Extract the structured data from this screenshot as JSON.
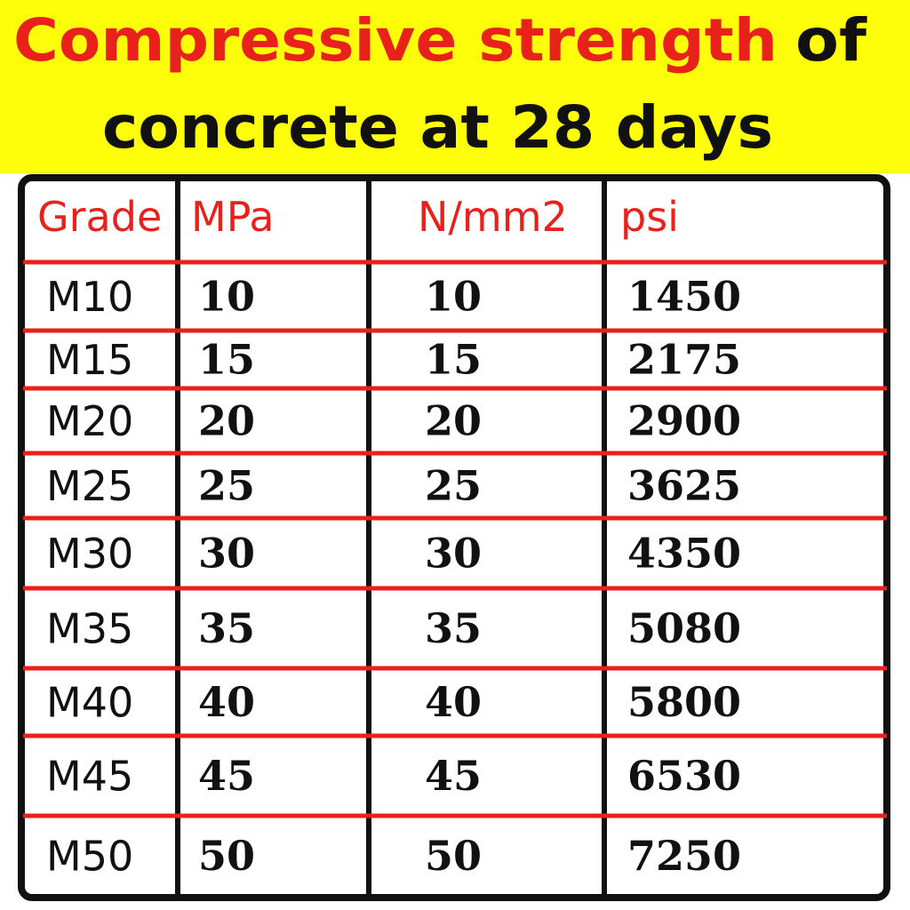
{
  "header": {
    "title_red": "Compressive strength",
    "title_black": "of",
    "title_line2": "concrete at 28 days"
  },
  "table": {
    "columns": [
      "Grade",
      "MPa",
      "N/mm2",
      "psi"
    ],
    "rows": [
      [
        "M10",
        10,
        10,
        1450
      ],
      [
        "M15",
        15,
        15,
        2175
      ],
      [
        "M20",
        20,
        20,
        2900
      ],
      [
        "M25",
        25,
        25,
        3625
      ],
      [
        "M30",
        30,
        30,
        4350
      ],
      [
        "M35",
        35,
        35,
        5080
      ],
      [
        "M40",
        40,
        40,
        5800
      ],
      [
        "M45",
        45,
        45,
        6530
      ],
      [
        "M50",
        50,
        50,
        7250
      ]
    ]
  }
}
